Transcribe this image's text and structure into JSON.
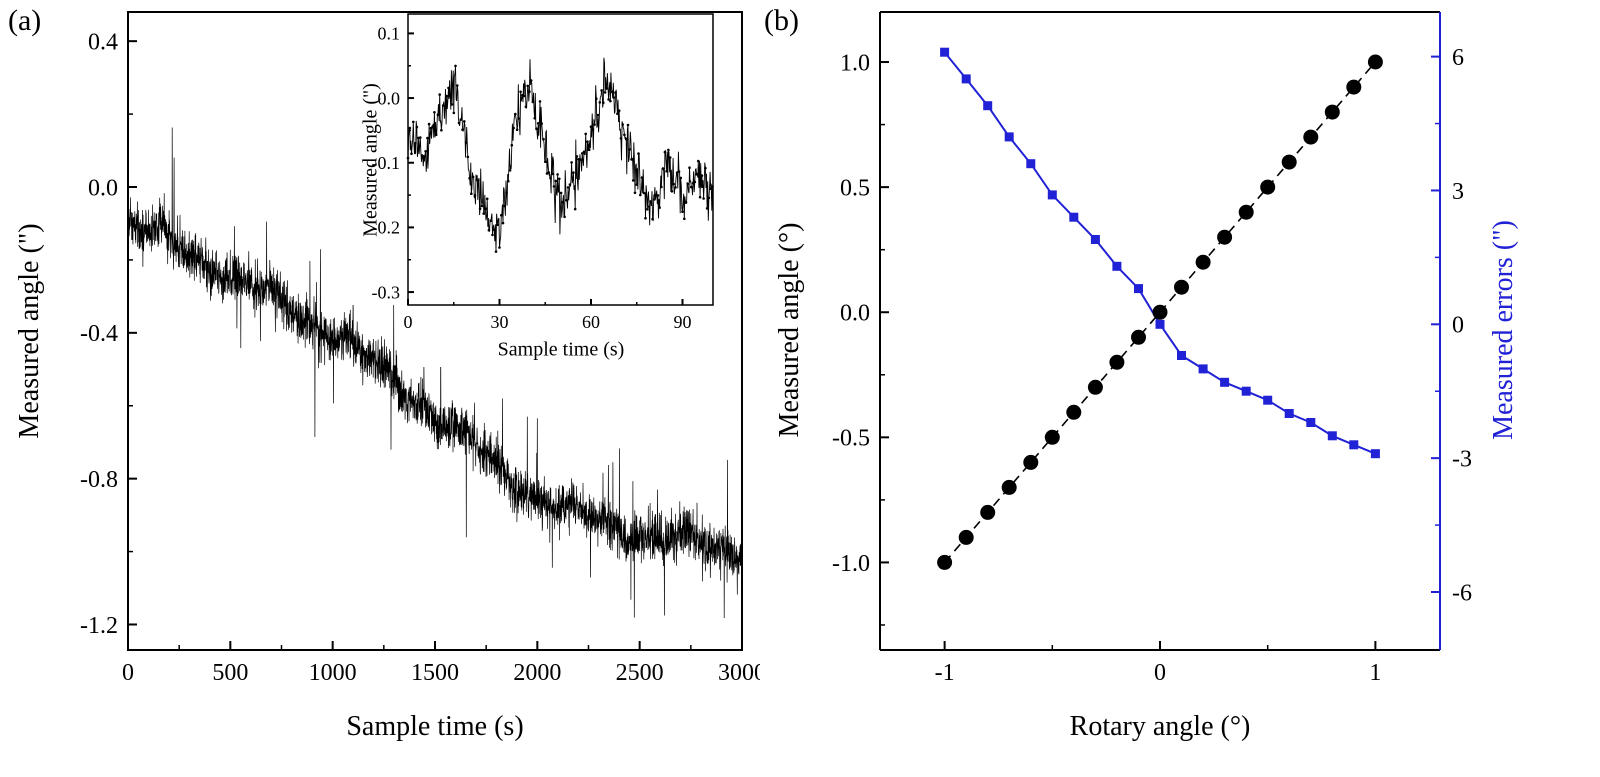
{
  "figure": {
    "panels": [
      {
        "label": "(a)"
      },
      {
        "label": "(b)"
      }
    ],
    "colors": {
      "black": "#000000",
      "blue": "#2121d6",
      "background": "#ffffff"
    }
  },
  "chart_data": [
    {
      "id": "drift-main",
      "type": "line",
      "panel": "a",
      "title": "",
      "xlabel": "Sample time (s)",
      "ylabel": "Measured angle (\")",
      "xlim": [
        0,
        3000
      ],
      "ylim": [
        -1.27,
        0.48
      ],
      "grid": false,
      "xtick_values": [
        0,
        500,
        1000,
        1500,
        2000,
        2500,
        3000
      ],
      "xtick_labels": [
        "0",
        "500",
        "1000",
        "1500",
        "2000",
        "2500",
        "3000"
      ],
      "ytick_values": [
        0.4,
        0.0,
        -0.4,
        -0.8,
        -1.2
      ],
      "ytick_labels": [
        "0.4",
        "0.0",
        "-0.4",
        "-0.8",
        "-1.2"
      ],
      "series": [
        {
          "name": "measured-angle-drift",
          "color": "#000000",
          "trend_x": [
            0,
            250,
            500,
            750,
            1000,
            1250,
            1500,
            1750,
            2000,
            2250,
            2500,
            2750,
            3000
          ],
          "trend_y": [
            -0.1,
            -0.16,
            -0.24,
            -0.32,
            -0.4,
            -0.51,
            -0.62,
            -0.74,
            -0.85,
            -0.91,
            -0.95,
            -0.98,
            -1.0
          ],
          "noise_amplitude": 0.055,
          "spike_amplitude": 0.24,
          "n_points": 3000
        }
      ]
    },
    {
      "id": "drift-inset",
      "type": "line",
      "panel": "a-inset",
      "title": "",
      "xlabel": "Sample time (s)",
      "ylabel": "Measured angle (\")",
      "xlim": [
        0,
        100
      ],
      "ylim": [
        -0.32,
        0.13
      ],
      "grid": false,
      "xtick_values": [
        0,
        30,
        60,
        90
      ],
      "xtick_labels": [
        "0",
        "30",
        "60",
        "90"
      ],
      "ytick_values": [
        0.1,
        0.0,
        -0.1,
        -0.2,
        -0.3
      ],
      "ytick_labels": [
        "0.1",
        "0.0",
        "-0.1",
        "-0.2",
        "-0.3"
      ],
      "series": [
        {
          "name": "measured-angle-short-term",
          "color": "#000000",
          "trend_x": [
            0,
            5,
            10,
            15,
            20,
            25,
            30,
            35,
            40,
            45,
            50,
            55,
            60,
            65,
            70,
            75,
            80,
            85,
            90,
            95,
            100
          ],
          "trend_y": [
            -0.07,
            -0.1,
            -0.04,
            0.0,
            -0.12,
            -0.18,
            -0.22,
            -0.04,
            0.02,
            -0.08,
            -0.17,
            -0.12,
            -0.06,
            0.03,
            -0.05,
            -0.12,
            -0.18,
            -0.1,
            -0.16,
            -0.12,
            -0.16
          ],
          "noise_amplitude": 0.035,
          "spike_amplitude": 0.06,
          "n_points": 520
        }
      ]
    },
    {
      "id": "calibration",
      "type": "scatter",
      "panel": "b",
      "title": "",
      "xlabel": "Rotary angle (°)",
      "ylabel_left": "Measured angle (°)",
      "ylabel_right": "Measured errors (\")",
      "xlim": [
        -1.3,
        1.3
      ],
      "ylim_left": [
        -1.35,
        1.2
      ],
      "ylim_right": [
        -7.3,
        7.0
      ],
      "grid": false,
      "xtick_values": [
        -1,
        0,
        1
      ],
      "xtick_labels": [
        "-1",
        "0",
        "1"
      ],
      "ytick_left_values": [
        1.0,
        0.5,
        0.0,
        -0.5,
        -1.0
      ],
      "ytick_left_labels": [
        "1.0",
        "0.5",
        "0.0",
        "-0.5",
        "-1.0"
      ],
      "ytick_right_values": [
        6,
        3,
        0,
        -3,
        -6
      ],
      "ytick_right_labels": [
        "6",
        "3",
        "0",
        "-3",
        "-6"
      ],
      "series": [
        {
          "name": "Measured angle",
          "axis": "left",
          "marker": "circle",
          "line_style": "dashed",
          "color": "#000000",
          "x": [
            -1.0,
            -0.9,
            -0.8,
            -0.7,
            -0.6,
            -0.5,
            -0.4,
            -0.3,
            -0.2,
            -0.1,
            0.0,
            0.1,
            0.2,
            0.3,
            0.4,
            0.5,
            0.6,
            0.7,
            0.8,
            0.9,
            1.0
          ],
          "y": [
            -1.0,
            -0.9,
            -0.8,
            -0.7,
            -0.6,
            -0.5,
            -0.4,
            -0.3,
            -0.2,
            -0.1,
            0.0,
            0.1,
            0.2,
            0.3,
            0.4,
            0.5,
            0.6,
            0.7,
            0.8,
            0.9,
            1.0
          ]
        },
        {
          "name": "Measured errors",
          "axis": "right",
          "marker": "square",
          "line_style": "solid",
          "color": "#2121d6",
          "x": [
            -1.0,
            -0.9,
            -0.8,
            -0.7,
            -0.6,
            -0.5,
            -0.4,
            -0.3,
            -0.2,
            -0.1,
            0.0,
            0.1,
            0.2,
            0.3,
            0.4,
            0.5,
            0.6,
            0.7,
            0.8,
            0.9,
            1.0
          ],
          "y": [
            6.1,
            5.5,
            4.9,
            4.2,
            3.6,
            2.9,
            2.4,
            1.9,
            1.3,
            0.8,
            0.0,
            -0.7,
            -1.0,
            -1.3,
            -1.5,
            -1.7,
            -2.0,
            -2.2,
            -2.5,
            -2.7,
            -2.9
          ]
        }
      ]
    }
  ]
}
